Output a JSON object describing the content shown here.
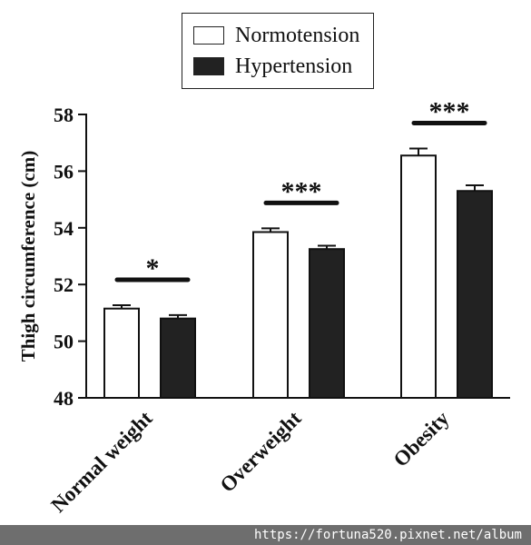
{
  "chart_data": {
    "type": "bar",
    "title": "",
    "xlabel": "",
    "ylabel": "Thigh circumference (cm)",
    "ylim": [
      48,
      58
    ],
    "yticks": [
      "48",
      "50",
      "52",
      "54",
      "56",
      "58"
    ],
    "categories": [
      "Normal weight",
      "Overweight",
      "Obesity"
    ],
    "series": [
      {
        "name": "Normotension",
        "values": [
          51.15,
          53.85,
          56.55
        ],
        "errors": [
          0.12,
          0.13,
          0.25
        ],
        "color": "#ffffff"
      },
      {
        "name": "Hypertension",
        "values": [
          50.8,
          53.25,
          55.3
        ],
        "errors": [
          0.12,
          0.12,
          0.2
        ],
        "color": "#222222"
      }
    ],
    "significance": [
      "*",
      "***",
      "***"
    ],
    "legend_position": "top-center",
    "grid": false
  },
  "watermark": "https://fortuna520.pixnet.net/album"
}
